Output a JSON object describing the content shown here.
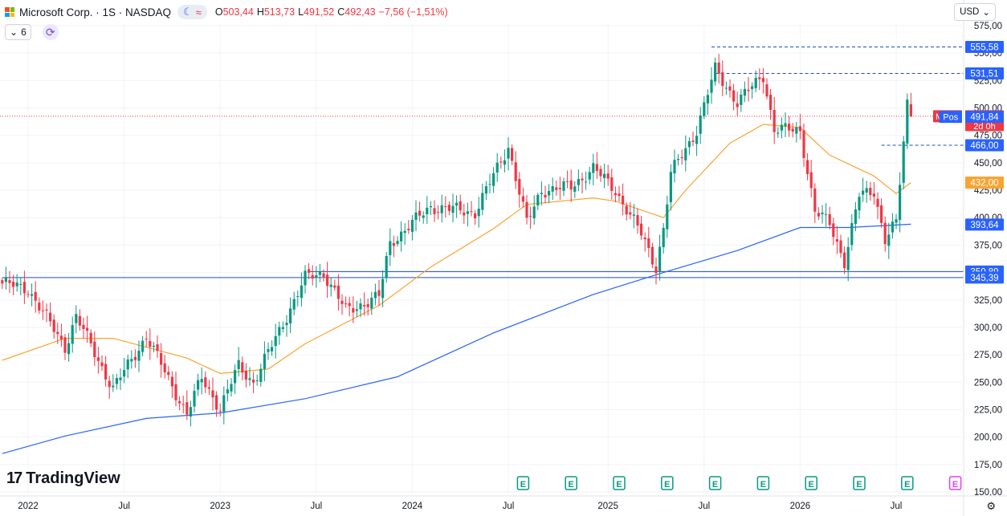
{
  "header": {
    "title": "Microsoft Corp. · 1S · NASDAQ",
    "open_label": "O",
    "open": "503,44",
    "high_label": "H",
    "high": "513,73",
    "low_label": "L",
    "low": "491,52",
    "close_label": "C",
    "close": "492,43",
    "change": "−7,56 (−1,51%)",
    "pill_icons": [
      "moon-icon",
      "wave-icon"
    ],
    "pill_glyph_a": "☾",
    "pill_glyph_b": "≈"
  },
  "toolbar": {
    "indicator_count": "6",
    "currency": "USD",
    "logo_text": "TradingView"
  },
  "colors": {
    "up": "#089981",
    "down": "#f23645",
    "ma_short": "#f7a432",
    "ma_long": "#2962ff",
    "hline": "#1e4fb8"
  },
  "chart_data": {
    "type": "candlestick",
    "title": "Microsoft Corp. · 1S · NASDAQ",
    "ylim": [
      150,
      575
    ],
    "y_ticks": [
      150,
      175,
      200,
      225,
      250,
      275,
      300,
      325,
      350,
      375,
      400,
      425,
      450,
      475,
      500,
      525,
      550,
      575
    ],
    "y_tick_labels": [
      "150,00",
      "175,00",
      "200,00",
      "225,00",
      "250,00",
      "275,00",
      "300,00",
      "325,00",
      "350,00",
      "375,00",
      "400,00",
      "425,00",
      "450,00",
      "475,00",
      "500,00",
      "525,00",
      "550,00",
      "575,00"
    ],
    "x_ticks": [
      {
        "label": "2022",
        "date": "2022-01-03"
      },
      {
        "label": "Jul",
        "date": "2022-07-04"
      },
      {
        "label": "2023",
        "date": "2023-01-02"
      },
      {
        "label": "Jul",
        "date": "2023-07-03"
      },
      {
        "label": "2024",
        "date": "2024-01-01"
      },
      {
        "label": "Jul",
        "date": "2024-07-01"
      },
      {
        "label": "2025",
        "date": "2025-01-06"
      },
      {
        "label": "Jul",
        "date": "2025-07-07"
      },
      {
        "label": "2026",
        "date": "2026-01-05"
      },
      {
        "label": "Jul",
        "date": "2026-07-06"
      }
    ],
    "anchors": [
      {
        "date": "2021-11-15",
        "close": 340
      },
      {
        "date": "2022-01-03",
        "close": 335
      },
      {
        "date": "2022-03-14",
        "close": 282
      },
      {
        "date": "2022-04-04",
        "close": 310
      },
      {
        "date": "2022-06-13",
        "close": 244
      },
      {
        "date": "2022-08-15",
        "close": 292
      },
      {
        "date": "2022-10-31",
        "close": 221
      },
      {
        "date": "2022-11-28",
        "close": 254
      },
      {
        "date": "2023-01-02",
        "close": 226
      },
      {
        "date": "2023-02-06",
        "close": 265
      },
      {
        "date": "2023-03-06",
        "close": 250
      },
      {
        "date": "2023-04-17",
        "close": 290
      },
      {
        "date": "2023-06-12",
        "close": 345
      },
      {
        "date": "2023-07-17",
        "close": 350
      },
      {
        "date": "2023-08-28",
        "close": 315
      },
      {
        "date": "2023-10-30",
        "close": 328
      },
      {
        "date": "2023-11-20",
        "close": 377
      },
      {
        "date": "2024-02-05",
        "close": 410
      },
      {
        "date": "2024-04-29",
        "close": 405
      },
      {
        "date": "2024-07-01",
        "close": 465
      },
      {
        "date": "2024-08-05",
        "close": 395
      },
      {
        "date": "2024-09-02",
        "close": 425
      },
      {
        "date": "2024-10-28",
        "close": 428
      },
      {
        "date": "2024-12-09",
        "close": 445
      },
      {
        "date": "2025-01-20",
        "close": 425
      },
      {
        "date": "2025-03-10",
        "close": 385
      },
      {
        "date": "2025-04-07",
        "close": 355
      },
      {
        "date": "2025-04-21",
        "close": 390
      },
      {
        "date": "2025-05-05",
        "close": 440
      },
      {
        "date": "2025-06-23",
        "close": 480
      },
      {
        "date": "2025-07-28",
        "close": 535
      },
      {
        "date": "2025-09-08",
        "close": 505
      },
      {
        "date": "2025-10-27",
        "close": 530
      },
      {
        "date": "2025-11-17",
        "close": 480
      },
      {
        "date": "2026-01-05",
        "close": 480
      },
      {
        "date": "2026-02-02",
        "close": 405
      },
      {
        "date": "2026-03-02",
        "close": 395
      },
      {
        "date": "2026-03-30",
        "close": 360
      },
      {
        "date": "2026-04-27",
        "close": 420
      },
      {
        "date": "2026-05-25",
        "close": 425
      },
      {
        "date": "2026-06-15",
        "close": 380
      },
      {
        "date": "2026-07-06",
        "close": 395
      },
      {
        "date": "2026-07-27",
        "close": 505
      },
      {
        "date": "2026-08-03",
        "close": 492.43
      }
    ],
    "last_candle": {
      "date": "2026-08-03",
      "open": 503.44,
      "high": 513.73,
      "low": 491.52,
      "close": 492.43
    },
    "series": [
      {
        "type": "ma",
        "color": "#f7a432",
        "points": [
          {
            "date": "2021-11-15",
            "value": 270
          },
          {
            "date": "2022-03-14",
            "value": 290
          },
          {
            "date": "2022-06-13",
            "value": 290
          },
          {
            "date": "2022-10-31",
            "value": 272
          },
          {
            "date": "2023-01-02",
            "value": 258
          },
          {
            "date": "2023-04-03",
            "value": 262
          },
          {
            "date": "2023-06-12",
            "value": 285
          },
          {
            "date": "2023-10-30",
            "value": 320
          },
          {
            "date": "2024-02-05",
            "value": 355
          },
          {
            "date": "2024-06-03",
            "value": 390
          },
          {
            "date": "2024-08-05",
            "value": 412
          },
          {
            "date": "2024-12-09",
            "value": 418
          },
          {
            "date": "2025-01-20",
            "value": 415
          },
          {
            "date": "2025-04-21",
            "value": 400
          },
          {
            "date": "2025-06-02",
            "value": 425
          },
          {
            "date": "2025-08-25",
            "value": 468
          },
          {
            "date": "2025-10-27",
            "value": 485
          },
          {
            "date": "2026-01-05",
            "value": 482
          },
          {
            "date": "2026-03-02",
            "value": 457
          },
          {
            "date": "2026-05-25",
            "value": 438
          },
          {
            "date": "2026-07-06",
            "value": 422
          },
          {
            "date": "2026-08-03",
            "value": 432
          }
        ]
      },
      {
        "type": "ma",
        "color": "#2962ff",
        "points": [
          {
            "date": "2021-11-15",
            "value": 185
          },
          {
            "date": "2022-03-14",
            "value": 201
          },
          {
            "date": "2022-08-15",
            "value": 217
          },
          {
            "date": "2023-01-02",
            "value": 222
          },
          {
            "date": "2023-06-12",
            "value": 235
          },
          {
            "date": "2023-12-04",
            "value": 255
          },
          {
            "date": "2024-06-03",
            "value": 295
          },
          {
            "date": "2024-12-09",
            "value": 330
          },
          {
            "date": "2025-04-21",
            "value": 350
          },
          {
            "date": "2025-09-08",
            "value": 370
          },
          {
            "date": "2026-01-05",
            "value": 391
          },
          {
            "date": "2026-04-06",
            "value": 391
          },
          {
            "date": "2026-08-03",
            "value": 394
          }
        ]
      }
    ],
    "horizontal_lines": [
      {
        "value": 350.89,
        "label": "350,89",
        "from": "2023-06-19",
        "style": "solid"
      },
      {
        "value": 345.39,
        "label": "345,39",
        "from": "2021-11-15",
        "style": "solid"
      },
      {
        "value": 555.58,
        "label": "555,58",
        "from": "2025-07-21",
        "style": "dashed"
      },
      {
        "value": 531.51,
        "label": "531,51",
        "from": "2025-07-28",
        "style": "dashed"
      },
      {
        "value": 466.0,
        "label": "466,00",
        "from": "2026-06-08",
        "style": "dashed"
      }
    ],
    "price_tags": [
      {
        "value": 555.58,
        "label": "555,58",
        "color": "#2962ff"
      },
      {
        "value": 531.51,
        "label": "531,51",
        "color": "#2962ff"
      },
      {
        "value": 492.43,
        "label": "492,43",
        "sub": "2d 0h",
        "color": "#f23645",
        "tag": "MSFT"
      },
      {
        "value": 491.84,
        "label": "491,84",
        "color": "#2962ff",
        "tag": "Pos"
      },
      {
        "value": 466.0,
        "label": "466,00",
        "color": "#2962ff"
      },
      {
        "value": 432.0,
        "label": "432,00",
        "color": "#f7a432"
      },
      {
        "value": 393.64,
        "label": "393,64",
        "color": "#2962ff"
      },
      {
        "value": 350.89,
        "label": "350,89",
        "color": "#2962ff"
      },
      {
        "value": 345.39,
        "label": "345,39",
        "color": "#2962ff"
      }
    ],
    "earnings_markers": [
      "2024-07-29",
      "2024-10-28",
      "2025-01-27",
      "2025-04-28",
      "2025-07-28",
      "2025-10-27",
      "2026-01-26",
      "2026-04-27",
      "2026-07-27"
    ],
    "earnings_upcoming": "2026-10-26",
    "earnings_glyph": "E"
  }
}
